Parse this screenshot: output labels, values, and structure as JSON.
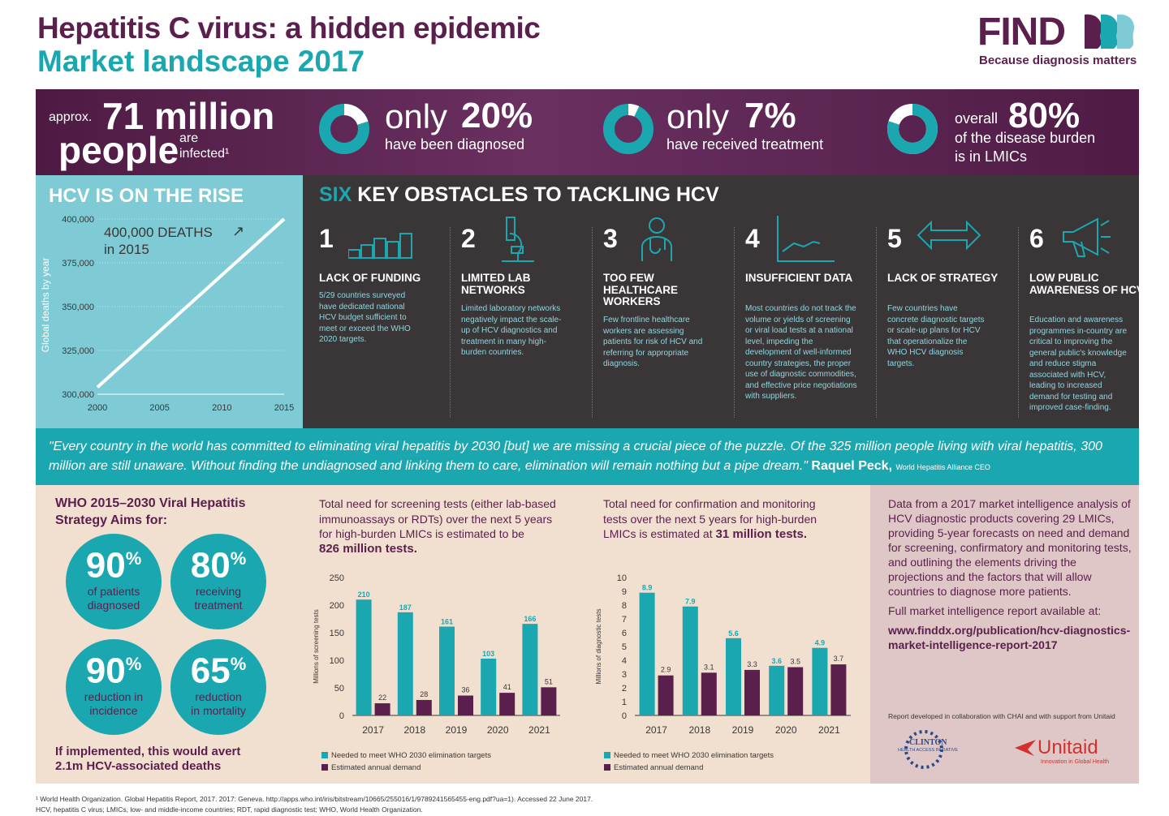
{
  "header": {
    "title": "Hepatitis C virus: a hidden epidemic",
    "subtitle": "Market landscape 2017",
    "logo": "FIND",
    "tagline": "Because diagnosis matters"
  },
  "stats": {
    "s1_pre": "approx.",
    "s1_big": "71 million",
    "s1_big2": "people",
    "s1_tail": "are",
    "s1_tail2": "infected¹",
    "s2_pre": "only",
    "s2_big": "20%",
    "s2_sub": "have been diagnosed",
    "s2_fraction": 0.2,
    "s3_pre": "only",
    "s3_big": "7%",
    "s3_sub": "have received treatment",
    "s3_fraction": 0.07,
    "s4_pre": "overall",
    "s4_big": "80%",
    "s4_sub1": "of the disease burden",
    "s4_sub2": "is in LMICs",
    "s4_fraction": 0.8
  },
  "rise": {
    "title": "HCV IS ON THE RISE",
    "annot1": "400,000 DEATHS",
    "annot2": "in 2015"
  },
  "obstacles": {
    "title_hl": "SIX",
    "title_rest": "KEY OBSTACLES TO TACKLING HCV",
    "items": [
      {
        "num": "1",
        "title": "LACK OF FUNDING",
        "text": "5/29 countries surveyed have dedicated national HCV budget sufficient to meet or exceed the WHO 2020 targets."
      },
      {
        "num": "2",
        "title": "LIMITED LAB NETWORKS",
        "text": "Limited laboratory networks negatively impact the scale-up of HCV diagnostics and treatment in many high-burden countries."
      },
      {
        "num": "3",
        "title": "TOO FEW HEALTHCARE WORKERS",
        "text": "Few frontline healthcare workers are assessing patients for risk of HCV and referring for appropriate diagnosis."
      },
      {
        "num": "4",
        "title": "INSUFFICIENT DATA",
        "text": "Most countries do not track the volume or yields of screening or viral load tests at a national level, impeding the development of well-informed country strategies, the proper use of diagnostic commodities, and effective price negotiations with suppliers."
      },
      {
        "num": "5",
        "title": "LACK OF STRATEGY",
        "text": "Few countries have concrete diagnostic targets or scale-up plans for HCV that operationalize the WHO HCV diagnosis targets."
      },
      {
        "num": "6",
        "title": "LOW PUBLIC AWARENESS OF HCV",
        "text": "Education and awareness programmes in-country are critical to improving the general public's knowledge and reduce stigma associated with HCV, leading to increased demand for testing and improved case-finding."
      }
    ]
  },
  "quote": {
    "text": "\"Every country in the world has committed to eliminating viral hepatitis by 2030 [but] we are missing a crucial piece of the puzzle. Of the 325 million people living with viral hepatitis, 300 million are still unaware. Without finding the undiagnosed and linking them to care, elimination will remain nothing but a pipe dream.\"",
    "author": "Raquel Peck,",
    "role": "World Hepatitis Alliance CEO"
  },
  "who": {
    "title1": "WHO 2015–2030 Viral Hepatitis",
    "title2": "Strategy Aims for:",
    "aims": [
      {
        "pct": "90",
        "l1": "of patients",
        "l2": "diagnosed"
      },
      {
        "pct": "80",
        "l1": "receiving",
        "l2": "treatment"
      },
      {
        "pct": "90",
        "l1": "reduction in",
        "l2": "incidence"
      },
      {
        "pct": "65",
        "l1": "reduction",
        "l2": "in mortality"
      }
    ],
    "foot1": "If implemented, this would avert",
    "foot2": "2.1m HCV-associated deaths"
  },
  "screen": {
    "t1": "Total need for screening tests (either lab-based",
    "t2": "immunoassays or RDTs) over the next 5 years",
    "t3": "for high-burden LMICs is estimated to be",
    "t4": "826 million tests."
  },
  "confirm": {
    "t1": "Total need for confirmation and monitoring",
    "t2": "tests over the next 5 years for high-burden",
    "t3": "LMICs is estimated at",
    "t4": "31 million tests."
  },
  "legend": {
    "a": "Needed to meet WHO 2030 elimination targets",
    "b": "Estimated annual demand"
  },
  "side": {
    "p1": "Data from a 2017 market intelligence analysis of HCV diagnostic products covering 29 LMICs, providing 5-year forecasts on need and demand for screening, confirmatory and monitoring tests, and outlining the elements driving the projections and the factors that will allow countries to diagnose more patients.",
    "p2": "Full market intelligence report available at:",
    "url": "www.finddx.org/publication/hcv-diagnostics-market-intelligence-report-2017",
    "collab": "Report developed in collaboration with CHAI and with support from Unitaid",
    "clinton": "CLINTON",
    "clinton2": "HEALTH ACCESS INITIATIVE",
    "unitaid": "Unitaid",
    "unitaid2": "Innovation in Global Health"
  },
  "footnotes": {
    "f1": "¹ World Health Organization. Global Hepatitis Report, 2017. 2017: Geneva. http://apps.who.int/iris/bitstream/10665/255016/1/9789241565455-eng.pdf?ua=1). Accessed 22 June 2017.",
    "f2": "HCV, hepatitis C virus; LMICs, low- and middle-income countries; RDT, rapid diagnostic test; WHO, World Health Organization."
  },
  "colors": {
    "teal": "#1ba7b0",
    "plum": "#5b1f4e",
    "dark": "#3a3637",
    "light_teal": "#7ecbd6"
  },
  "chart_data": [
    {
      "type": "line",
      "ylabel": "Global deaths by year",
      "x": [
        2000,
        2015
      ],
      "y": [
        304000,
        400000
      ],
      "xticks": [
        "2000",
        "2005",
        "2010",
        "2015"
      ],
      "yticks": [
        "300,000",
        "325,000",
        "350,000",
        "375,000",
        "400,000"
      ],
      "ylim": [
        300000,
        400000
      ],
      "xlim": [
        2000,
        2015
      ]
    },
    {
      "type": "bar",
      "categories": [
        "2017",
        "2018",
        "2019",
        "2020",
        "2021"
      ],
      "ylabel": "Millions of screening tests",
      "ylim": [
        0,
        250
      ],
      "yticks": [
        "0",
        "50",
        "100",
        "150",
        "200",
        "250"
      ],
      "series": [
        {
          "name": "Needed to meet WHO 2030 elimination targets",
          "values": [
            210,
            187,
            161,
            103,
            166
          ]
        },
        {
          "name": "Estimated annual demand",
          "values": [
            22,
            28,
            36,
            41,
            51
          ]
        }
      ]
    },
    {
      "type": "bar",
      "categories": [
        "2017",
        "2018",
        "2019",
        "2020",
        "2021"
      ],
      "ylabel": "Millions of diagnostic tests",
      "ylim": [
        0,
        10
      ],
      "yticks": [
        "0",
        "1",
        "2",
        "3",
        "4",
        "5",
        "6",
        "7",
        "8",
        "9",
        "10"
      ],
      "series": [
        {
          "name": "Needed to meet WHO 2030 elimination targets",
          "values": [
            8.9,
            7.9,
            5.6,
            3.6,
            4.9
          ]
        },
        {
          "name": "Estimated annual demand",
          "values": [
            2.9,
            3.1,
            3.3,
            3.5,
            3.7
          ]
        }
      ]
    }
  ]
}
